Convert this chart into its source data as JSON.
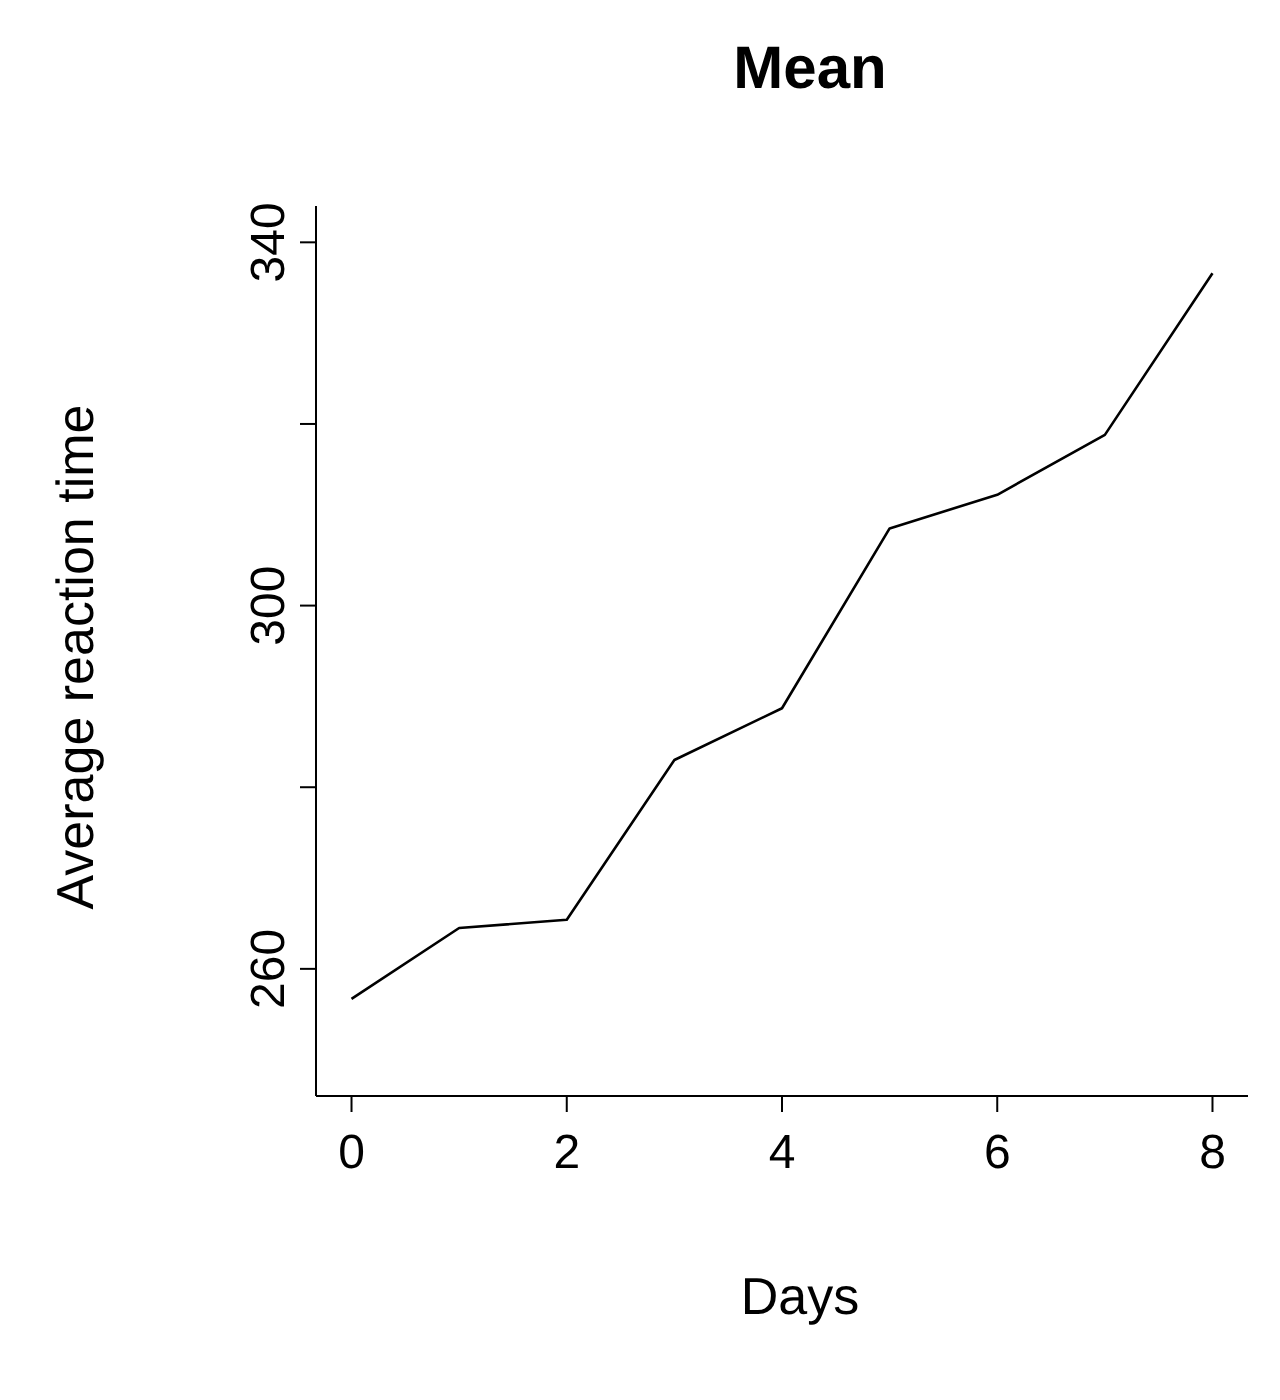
{
  "chart_data": {
    "type": "line",
    "title": "Mean",
    "xlabel": "Days",
    "ylabel": "Average reaction time",
    "x": [
      0,
      1,
      2,
      3,
      4,
      5,
      6,
      7,
      8
    ],
    "series": [
      {
        "color": "#000000",
        "values": [
          256.7,
          264.5,
          265.4,
          283.0,
          288.7,
          308.5,
          312.2,
          318.8,
          336.6
        ]
      }
    ],
    "xlim": [
      -0.33,
      8.33
    ],
    "xticks": [
      0,
      2,
      4,
      6,
      8
    ],
    "ylim": [
      246,
      344
    ],
    "yticks": [
      260,
      {
        "value": 280,
        "label": null
      },
      300,
      {
        "value": 320,
        "label": null
      },
      340
    ],
    "grid": false,
    "legend": false,
    "marker": "none",
    "line_style": "solid"
  }
}
